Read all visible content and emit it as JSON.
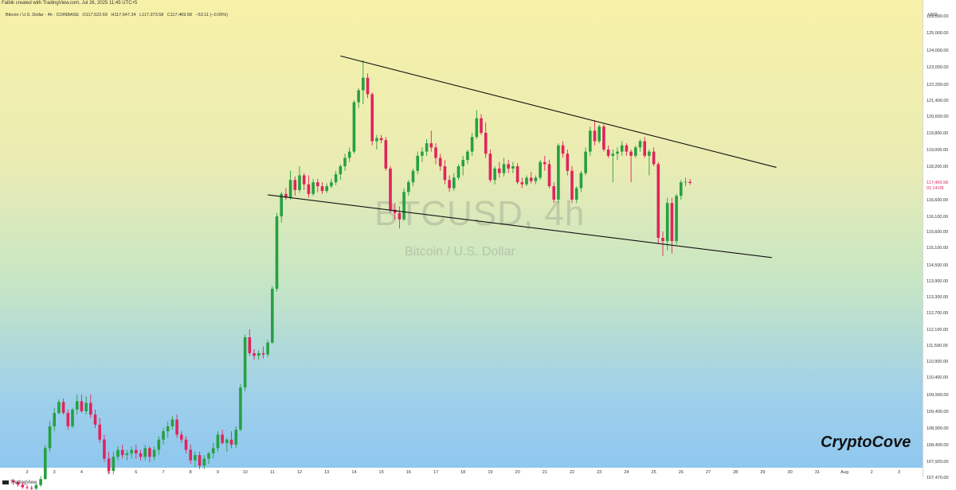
{
  "header": {
    "author_line": "Falbik created with TradingView.com, Jul 26, 2025 11:45 UTC+5",
    "symbol": "Bitcoin / U.S. Dollar · 4h · COINBASE",
    "ohlc": {
      "open": "O117,522.69",
      "high": "H117,647.24",
      "low": "L117,373.58",
      "close": "C117,469.58",
      "change": "−53.11 (−0.05%)"
    }
  },
  "watermark": {
    "main": "BTCUSD, 4h",
    "sub": "Bitcoin / U.S. Dollar"
  },
  "brand": "CryptoCove",
  "footer_logo": "TradingView",
  "colors": {
    "up": "#26a042",
    "down": "#e0245e",
    "trendline": "#111111",
    "price_badge_text": "#e0245e"
  },
  "chart_data": {
    "type": "candlestick",
    "title": "",
    "currency_label": "USD",
    "y_ticks": [
      "126,000.00",
      "125,000.00",
      "124,000.00",
      "123,000.00",
      "122,200.00",
      "121,400.00",
      "120,600.00",
      "119,800.00",
      "119,000.00",
      "118,200.00",
      "117,469.58",
      "116,600.00",
      "116,100.00",
      "115,600.00",
      "115,100.00",
      "114,500.00",
      "113,900.00",
      "113,300.00",
      "112,700.00",
      "112,100.00",
      "111,500.00",
      "110,900.00",
      "110,400.00",
      "109,900.00",
      "109,400.00",
      "108,900.00",
      "108,400.00",
      "107,920.00",
      "107,470.00"
    ],
    "y_tick_values": [
      126000,
      125000,
      124000,
      123000,
      122200,
      121400,
      120600,
      119800,
      119000,
      118200,
      117469.58,
      116600,
      116100,
      115600,
      115100,
      114500,
      113900,
      113300,
      112700,
      112100,
      111500,
      110900,
      110400,
      109900,
      109400,
      108900,
      108400,
      107920,
      107470
    ],
    "current_price": "117,469.58",
    "countdown": "01:14:08",
    "x_ticks": [
      "2",
      "3",
      "4",
      "5",
      "6",
      "7",
      "8",
      "9",
      "10",
      "11",
      "12",
      "13",
      "14",
      "15",
      "16",
      "17",
      "18",
      "19",
      "20",
      "21",
      "22",
      "23",
      "24",
      "25",
      "26",
      "27",
      "28",
      "29",
      "30",
      "31",
      "Aug",
      "2",
      "3",
      "4"
    ],
    "x_start": "Jul 1",
    "x_step_days": 1,
    "candle_interval": "4h",
    "first_candle": "Jul 1 12:00",
    "candles": [
      [
        107380,
        107430,
        107250,
        107330
      ],
      [
        107330,
        107380,
        107200,
        107260
      ],
      [
        107260,
        107330,
        107140,
        107190
      ],
      [
        107190,
        107260,
        107120,
        107170
      ],
      [
        107170,
        107230,
        107100,
        107150
      ],
      [
        107150,
        107300,
        107090,
        107250
      ],
      [
        107250,
        107500,
        107200,
        107420
      ],
      [
        107420,
        108400,
        107400,
        108300
      ],
      [
        108300,
        109100,
        108200,
        108950
      ],
      [
        108950,
        109500,
        108800,
        109350
      ],
      [
        109350,
        109750,
        109300,
        109680
      ],
      [
        109680,
        109780,
        109300,
        109350
      ],
      [
        109350,
        109450,
        108850,
        108950
      ],
      [
        108950,
        109500,
        108900,
        109450
      ],
      [
        109450,
        109900,
        109300,
        109700
      ],
      [
        109700,
        109900,
        109350,
        109400
      ],
      [
        109400,
        109850,
        109300,
        109650
      ],
      [
        109650,
        109900,
        109200,
        109300
      ],
      [
        109300,
        109450,
        108900,
        109000
      ],
      [
        109000,
        109200,
        108450,
        108550
      ],
      [
        108550,
        108700,
        107900,
        108000
      ],
      [
        108000,
        108200,
        107550,
        107650
      ],
      [
        107650,
        108200,
        107550,
        108050
      ],
      [
        108050,
        108350,
        107950,
        108250
      ],
      [
        108250,
        108400,
        108000,
        108100
      ],
      [
        108100,
        108250,
        107950,
        108150
      ],
      [
        108150,
        108350,
        108000,
        108250
      ],
      [
        108250,
        108400,
        108000,
        108150
      ],
      [
        108150,
        108250,
        107950,
        108050
      ],
      [
        108050,
        108400,
        107950,
        108300
      ],
      [
        108300,
        108350,
        107900,
        108050
      ],
      [
        108050,
        108350,
        107950,
        108250
      ],
      [
        108250,
        108650,
        108100,
        108550
      ],
      [
        108550,
        108900,
        108400,
        108800
      ],
      [
        108800,
        109100,
        108600,
        108950
      ],
      [
        108950,
        109250,
        108850,
        109150
      ],
      [
        109150,
        109300,
        108600,
        108700
      ],
      [
        108700,
        108800,
        108450,
        108550
      ],
      [
        108550,
        108650,
        108150,
        108250
      ],
      [
        108250,
        108400,
        107850,
        107950
      ],
      [
        107950,
        108200,
        107750,
        108100
      ],
      [
        108100,
        108200,
        107700,
        107800
      ],
      [
        107800,
        108100,
        107700,
        108000
      ],
      [
        108000,
        108200,
        107850,
        108150
      ],
      [
        108150,
        108450,
        108000,
        108300
      ],
      [
        108300,
        108800,
        108200,
        108700
      ],
      [
        108700,
        108850,
        108400,
        108450
      ],
      [
        108450,
        108600,
        108200,
        108550
      ],
      [
        108550,
        108800,
        108300,
        108400
      ],
      [
        108400,
        108950,
        108300,
        108850
      ],
      [
        108850,
        110200,
        108800,
        110100
      ],
      [
        110100,
        111900,
        110000,
        111800
      ],
      [
        111800,
        112100,
        111100,
        111200
      ],
      [
        111200,
        111350,
        110950,
        111100
      ],
      [
        111100,
        111300,
        110950,
        111200
      ],
      [
        111200,
        111450,
        111000,
        111150
      ],
      [
        111150,
        111700,
        111050,
        111600
      ],
      [
        111600,
        113700,
        111550,
        113600
      ],
      [
        113600,
        116200,
        113500,
        116100
      ],
      [
        116100,
        117000,
        115900,
        116900
      ],
      [
        116900,
        117200,
        116600,
        116700
      ],
      [
        116700,
        118000,
        116600,
        117600
      ],
      [
        117600,
        117750,
        116800,
        117100
      ],
      [
        117100,
        118200,
        116950,
        117800
      ],
      [
        117800,
        117900,
        117100,
        117400
      ],
      [
        117400,
        117800,
        116700,
        116900
      ],
      [
        116900,
        117650,
        116800,
        117500
      ],
      [
        117500,
        117650,
        117000,
        117300
      ],
      [
        117300,
        117500,
        116900,
        117050
      ],
      [
        117050,
        117450,
        116950,
        117300
      ],
      [
        117300,
        117650,
        117200,
        117500
      ],
      [
        117500,
        118000,
        117350,
        117850
      ],
      [
        117850,
        118300,
        117600,
        118200
      ],
      [
        118200,
        118800,
        118000,
        118600
      ],
      [
        118600,
        119100,
        118400,
        118900
      ],
      [
        118900,
        121400,
        118800,
        121300
      ],
      [
        121300,
        122000,
        121000,
        121900
      ],
      [
        121900,
        123400,
        121200,
        122500
      ],
      [
        122500,
        122700,
        121500,
        121700
      ],
      [
        121700,
        121800,
        119200,
        119400
      ],
      [
        119400,
        119700,
        119000,
        119550
      ],
      [
        119550,
        119700,
        119300,
        119450
      ],
      [
        119450,
        119600,
        118000,
        118100
      ],
      [
        118100,
        118200,
        116200,
        116300
      ],
      [
        116300,
        116500,
        116000,
        116200
      ],
      [
        116200,
        116400,
        115700,
        116000
      ],
      [
        116000,
        117200,
        115950,
        117000
      ],
      [
        117000,
        117600,
        116800,
        117500
      ],
      [
        117500,
        118100,
        117300,
        118000
      ],
      [
        118000,
        118900,
        117850,
        118700
      ],
      [
        118700,
        119100,
        118400,
        118900
      ],
      [
        118900,
        119500,
        118700,
        119300
      ],
      [
        119300,
        119900,
        118900,
        119100
      ],
      [
        119100,
        119300,
        118300,
        118600
      ],
      [
        118600,
        118800,
        118000,
        118200
      ],
      [
        118200,
        118500,
        117400,
        117600
      ],
      [
        117600,
        117800,
        117000,
        117200
      ],
      [
        117200,
        117900,
        117050,
        117700
      ],
      [
        117700,
        118300,
        117600,
        118200
      ],
      [
        118200,
        118700,
        117800,
        118500
      ],
      [
        118500,
        119000,
        118300,
        118900
      ],
      [
        118900,
        119800,
        118700,
        119600
      ],
      [
        119600,
        120900,
        119500,
        120500
      ],
      [
        120500,
        120700,
        119700,
        119800
      ],
      [
        119800,
        120300,
        118600,
        118800
      ],
      [
        118800,
        119000,
        117500,
        117600
      ],
      [
        117600,
        118200,
        117400,
        118100
      ],
      [
        118100,
        118400,
        117700,
        117900
      ],
      [
        117900,
        118600,
        117750,
        118300
      ],
      [
        118300,
        118500,
        117900,
        118100
      ],
      [
        118100,
        118400,
        117900,
        118200
      ],
      [
        118200,
        118350,
        117400,
        117500
      ],
      [
        117500,
        117700,
        117200,
        117400
      ],
      [
        117400,
        117800,
        117300,
        117700
      ],
      [
        117700,
        117950,
        117450,
        117550
      ],
      [
        117550,
        117800,
        117400,
        117700
      ],
      [
        117700,
        118500,
        117600,
        118400
      ],
      [
        118400,
        118700,
        118000,
        118300
      ],
      [
        118300,
        118500,
        117200,
        117300
      ],
      [
        117300,
        117500,
        116500,
        116600
      ],
      [
        116600,
        119300,
        116500,
        119200
      ],
      [
        119200,
        119400,
        118600,
        118800
      ],
      [
        118800,
        119000,
        117800,
        118000
      ],
      [
        118000,
        118200,
        116500,
        116600
      ],
      [
        116600,
        117300,
        116500,
        117200
      ],
      [
        117200,
        118000,
        117000,
        117900
      ],
      [
        117900,
        119100,
        117800,
        118900
      ],
      [
        118900,
        120100,
        118700,
        119900
      ],
      [
        119900,
        120400,
        119200,
        119400
      ],
      [
        119400,
        120200,
        119300,
        120100
      ],
      [
        120100,
        120200,
        118900,
        119000
      ],
      [
        119000,
        119200,
        118600,
        118700
      ],
      [
        118700,
        119000,
        117500,
        118800
      ],
      [
        118800,
        119100,
        118500,
        118900
      ],
      [
        118900,
        119400,
        118700,
        119200
      ],
      [
        119200,
        119300,
        118700,
        118900
      ],
      [
        118900,
        119000,
        117500,
        118700
      ],
      [
        118700,
        119200,
        118600,
        119100
      ],
      [
        119100,
        119500,
        118900,
        119400
      ],
      [
        119400,
        119600,
        118600,
        118700
      ],
      [
        118700,
        119000,
        117800,
        118900
      ],
      [
        118900,
        119100,
        118200,
        118300
      ],
      [
        118300,
        118400,
        115200,
        115400
      ],
      [
        115400,
        115600,
        114800,
        115300
      ],
      [
        115300,
        116700,
        115000,
        116500
      ],
      [
        116500,
        116700,
        114900,
        115300
      ],
      [
        115300,
        116900,
        115200,
        116800
      ],
      [
        116800,
        117600,
        116600,
        117500
      ],
      [
        117500,
        117700,
        117300,
        117520
      ],
      [
        117520,
        117647,
        117373,
        117470
      ]
    ],
    "trendlines": [
      {
        "name": "upper-trendline",
        "from": {
          "date": "Jul 13 12:00",
          "price": 123650
        },
        "to": {
          "date": "Jul 29 12:00",
          "price": 118150
        }
      },
      {
        "name": "lower-trendline",
        "from": {
          "date": "Jul 10 20:00",
          "price": 116850
        },
        "to": {
          "date": "Jul 29 08:00",
          "price": 114750
        }
      }
    ]
  }
}
